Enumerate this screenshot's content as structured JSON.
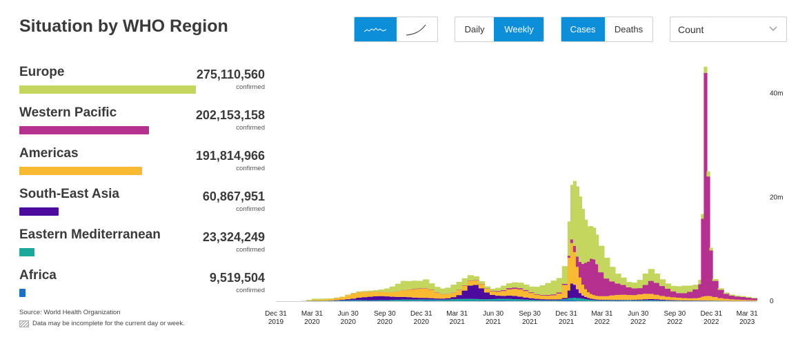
{
  "header": {
    "title": "Situation by WHO Region",
    "chart_style": {
      "options": [
        "linear-icon",
        "cumulative-icon"
      ],
      "selected": "linear-icon"
    },
    "period": {
      "options": [
        "Daily",
        "Weekly"
      ],
      "selected": "Weekly"
    },
    "metric": {
      "options": [
        "Cases",
        "Deaths"
      ],
      "selected": "Cases"
    },
    "measure_select": {
      "value": "Count",
      "icon": "chevron-down-icon"
    }
  },
  "regions": [
    {
      "name": "Europe",
      "value": "275,110,560",
      "sub": "confirmed",
      "color": "#c4d65e",
      "numeric": 275110560
    },
    {
      "name": "Western Pacific",
      "value": "202,153,158",
      "sub": "confirmed",
      "color": "#b5308f",
      "numeric": 202153158
    },
    {
      "name": "Americas",
      "value": "191,814,966",
      "sub": "confirmed",
      "color": "#f9b931",
      "numeric": 191814966
    },
    {
      "name": "South-East Asia",
      "value": "60,867,951",
      "sub": "confirmed",
      "color": "#4d0b9e",
      "numeric": 60867951
    },
    {
      "name": "Eastern Mediterranean",
      "value": "23,324,249",
      "sub": "confirmed",
      "color": "#1ba89a",
      "numeric": 23324249
    },
    {
      "name": "Africa",
      "value": "9,519,504",
      "sub": "confirmed",
      "color": "#1f6fc4",
      "numeric": 9519504
    }
  ],
  "footer": {
    "source": "Source: World Health Organization",
    "note": "Data may be incomplete for the current day or week."
  },
  "chart_data": {
    "type": "bar",
    "stacked": true,
    "x_ticks": [
      {
        "date": "2019-12-31",
        "line1": "Dec 31",
        "line2": "2019"
      },
      {
        "date": "2020-03-31",
        "line1": "Mar 31",
        "line2": "2020"
      },
      {
        "date": "2020-06-30",
        "line1": "Jun 30",
        "line2": "2020"
      },
      {
        "date": "2020-09-30",
        "line1": "Sep 30",
        "line2": "2020"
      },
      {
        "date": "2020-12-31",
        "line1": "Dec 31",
        "line2": "2020"
      },
      {
        "date": "2021-03-31",
        "line1": "Mar 31",
        "line2": "2021"
      },
      {
        "date": "2021-06-30",
        "line1": "Jun 30",
        "line2": "2021"
      },
      {
        "date": "2021-09-30",
        "line1": "Sep 30",
        "line2": "2021"
      },
      {
        "date": "2021-12-31",
        "line1": "Dec 31",
        "line2": "2021"
      },
      {
        "date": "2022-03-31",
        "line1": "Mar 31",
        "line2": "2022"
      },
      {
        "date": "2022-06-30",
        "line1": "Jun 30",
        "line2": "2022"
      },
      {
        "date": "2022-09-30",
        "line1": "Sep 30",
        "line2": "2022"
      },
      {
        "date": "2022-12-31",
        "line1": "Dec 31",
        "line2": "2022"
      },
      {
        "date": "2023-03-31",
        "line1": "Mar 31",
        "line2": "2023"
      }
    ],
    "y_ticks": [
      {
        "value": 0,
        "label": "0"
      },
      {
        "value": 20000000,
        "label": "20m"
      },
      {
        "value": 40000000,
        "label": "40m"
      }
    ],
    "ylim": [
      0,
      45000000
    ],
    "x_range": [
      "2019-12-31",
      "2023-04-24"
    ],
    "series_order": [
      "Africa",
      "Eastern Mediterranean",
      "South-East Asia",
      "Americas",
      "Western Pacific",
      "Europe"
    ],
    "series_colors": {
      "Africa": "#1f6fc4",
      "Eastern Mediterranean": "#1ba89a",
      "South-East Asia": "#4d0b9e",
      "Americas": "#f9b931",
      "Western Pacific": "#b5308f",
      "Europe": "#c4d65e"
    },
    "weeks": [
      [
        "2020-03-02",
        0.0,
        0.02,
        0.0,
        0.0,
        0.0,
        0.01
      ],
      [
        "2020-03-16",
        0.0,
        0.05,
        0.0,
        0.1,
        0.0,
        0.1
      ],
      [
        "2020-03-30",
        0.01,
        0.05,
        0.01,
        0.2,
        0.0,
        0.2
      ],
      [
        "2020-04-13",
        0.01,
        0.05,
        0.01,
        0.2,
        0.01,
        0.2
      ],
      [
        "2020-04-27",
        0.01,
        0.06,
        0.02,
        0.25,
        0.01,
        0.15
      ],
      [
        "2020-05-11",
        0.02,
        0.06,
        0.04,
        0.3,
        0.01,
        0.1
      ],
      [
        "2020-05-25",
        0.03,
        0.08,
        0.08,
        0.4,
        0.01,
        0.1
      ],
      [
        "2020-06-08",
        0.04,
        0.1,
        0.12,
        0.5,
        0.01,
        0.1
      ],
      [
        "2020-06-22",
        0.06,
        0.12,
        0.2,
        0.75,
        0.01,
        0.12
      ],
      [
        "2020-07-06",
        0.09,
        0.12,
        0.28,
        0.95,
        0.02,
        0.13
      ],
      [
        "2020-07-20",
        0.1,
        0.11,
        0.45,
        1.05,
        0.02,
        0.15
      ],
      [
        "2020-08-03",
        0.09,
        0.1,
        0.58,
        0.98,
        0.02,
        0.18
      ],
      [
        "2020-08-17",
        0.07,
        0.1,
        0.68,
        0.93,
        0.02,
        0.22
      ],
      [
        "2020-08-31",
        0.06,
        0.12,
        0.75,
        0.85,
        0.02,
        0.32
      ],
      [
        "2020-09-14",
        0.05,
        0.14,
        0.78,
        0.8,
        0.02,
        0.45
      ],
      [
        "2020-09-28",
        0.05,
        0.15,
        0.72,
        0.8,
        0.02,
        0.7
      ],
      [
        "2020-10-12",
        0.05,
        0.18,
        0.62,
        0.9,
        0.02,
        1.05
      ],
      [
        "2020-10-26",
        0.05,
        0.22,
        0.55,
        1.05,
        0.03,
        1.45
      ],
      [
        "2020-11-09",
        0.06,
        0.25,
        0.5,
        1.3,
        0.04,
        1.75
      ],
      [
        "2020-11-23",
        0.07,
        0.24,
        0.46,
        1.45,
        0.05,
        1.6
      ],
      [
        "2020-12-07",
        0.08,
        0.22,
        0.38,
        1.65,
        0.06,
        1.55
      ],
      [
        "2020-12-21",
        0.1,
        0.21,
        0.33,
        1.75,
        0.06,
        1.45
      ],
      [
        "2021-01-04",
        0.13,
        0.2,
        0.3,
        1.85,
        0.07,
        1.65
      ],
      [
        "2021-01-18",
        0.12,
        0.2,
        0.26,
        1.55,
        0.06,
        1.25
      ],
      [
        "2021-02-01",
        0.09,
        0.2,
        0.22,
        1.1,
        0.05,
        1.1
      ],
      [
        "2021-02-15",
        0.07,
        0.22,
        0.2,
        0.85,
        0.04,
        1.05
      ],
      [
        "2021-03-01",
        0.06,
        0.26,
        0.25,
        0.8,
        0.04,
        1.2
      ],
      [
        "2021-03-15",
        0.06,
        0.32,
        0.4,
        0.85,
        0.05,
        1.5
      ],
      [
        "2021-03-29",
        0.06,
        0.36,
        0.75,
        0.95,
        0.06,
        1.55
      ],
      [
        "2021-04-12",
        0.06,
        0.38,
        1.6,
        0.95,
        0.07,
        1.35
      ],
      [
        "2021-04-26",
        0.06,
        0.38,
        2.55,
        0.9,
        0.07,
        1.05
      ],
      [
        "2021-05-10",
        0.06,
        0.36,
        2.7,
        0.85,
        0.07,
        0.75
      ],
      [
        "2021-05-24",
        0.06,
        0.32,
        2.1,
        0.8,
        0.06,
        0.5
      ],
      [
        "2021-06-07",
        0.08,
        0.28,
        1.3,
        0.75,
        0.06,
        0.38
      ],
      [
        "2021-06-21",
        0.12,
        0.28,
        0.8,
        0.7,
        0.09,
        0.4
      ],
      [
        "2021-07-05",
        0.15,
        0.3,
        0.6,
        0.75,
        0.13,
        0.65
      ],
      [
        "2021-07-19",
        0.14,
        0.32,
        0.55,
        0.95,
        0.18,
        0.85
      ],
      [
        "2021-08-02",
        0.11,
        0.33,
        0.62,
        1.2,
        0.25,
        0.95
      ],
      [
        "2021-08-16",
        0.08,
        0.32,
        0.6,
        1.35,
        0.28,
        1.0
      ],
      [
        "2021-08-30",
        0.06,
        0.3,
        0.5,
        1.4,
        0.24,
        1.05
      ],
      [
        "2021-09-13",
        0.05,
        0.25,
        0.4,
        1.25,
        0.2,
        1.05
      ],
      [
        "2021-09-27",
        0.04,
        0.22,
        0.3,
        1.0,
        0.15,
        1.1
      ],
      [
        "2021-10-11",
        0.03,
        0.18,
        0.24,
        0.8,
        0.12,
        1.4
      ],
      [
        "2021-10-25",
        0.02,
        0.16,
        0.2,
        0.7,
        0.12,
        1.85
      ],
      [
        "2021-11-08",
        0.02,
        0.15,
        0.17,
        0.7,
        0.15,
        2.3
      ],
      [
        "2021-11-22",
        0.03,
        0.14,
        0.16,
        0.8,
        0.18,
        2.65
      ],
      [
        "2021-12-06",
        0.06,
        0.14,
        0.16,
        1.1,
        0.2,
        2.8
      ],
      [
        "2021-12-20",
        0.25,
        0.15,
        0.2,
        2.5,
        0.25,
        3.4
      ],
      [
        "2022-01-03",
        0.25,
        0.3,
        1.5,
        6.3,
        0.4,
        6.6
      ],
      [
        "2022-01-10",
        0.2,
        0.4,
        2.8,
        7.8,
        0.7,
        10.5
      ],
      [
        "2022-01-17",
        0.15,
        0.5,
        2.5,
        6.3,
        1.2,
        12.5
      ],
      [
        "2022-01-24",
        0.1,
        0.5,
        1.7,
        4.3,
        2.0,
        13.5
      ],
      [
        "2022-01-31",
        0.08,
        0.48,
        1.0,
        3.0,
        3.0,
        12.6
      ],
      [
        "2022-02-07",
        0.06,
        0.42,
        0.6,
        2.1,
        4.0,
        10.6
      ],
      [
        "2022-02-14",
        0.05,
        0.35,
        0.4,
        1.5,
        5.1,
        8.3
      ],
      [
        "2022-02-21",
        0.04,
        0.28,
        0.3,
        1.1,
        5.9,
        6.8
      ],
      [
        "2022-02-28",
        0.03,
        0.22,
        0.22,
        0.9,
        6.8,
        6.3
      ],
      [
        "2022-03-07",
        0.03,
        0.18,
        0.17,
        0.78,
        6.9,
        6.1
      ],
      [
        "2022-03-14",
        0.03,
        0.15,
        0.14,
        0.7,
        6.1,
        5.7
      ],
      [
        "2022-03-21",
        0.03,
        0.13,
        0.12,
        0.68,
        4.6,
        5.1
      ],
      [
        "2022-04-04",
        0.04,
        0.12,
        0.1,
        0.7,
        3.4,
        4.0
      ],
      [
        "2022-04-18",
        0.05,
        0.11,
        0.09,
        0.85,
        2.7,
        2.8
      ],
      [
        "2022-05-02",
        0.07,
        0.1,
        0.08,
        0.95,
        2.2,
        1.9
      ],
      [
        "2022-05-16",
        0.06,
        0.1,
        0.08,
        1.0,
        1.9,
        1.4
      ],
      [
        "2022-05-30",
        0.04,
        0.12,
        0.08,
        0.95,
        1.5,
        1.0
      ],
      [
        "2022-06-13",
        0.03,
        0.13,
        0.1,
        0.9,
        1.3,
        1.1
      ],
      [
        "2022-06-27",
        0.03,
        0.14,
        0.14,
        1.0,
        1.2,
        1.6
      ],
      [
        "2022-07-11",
        0.03,
        0.15,
        0.19,
        1.05,
        1.7,
        2.2
      ],
      [
        "2022-07-25",
        0.03,
        0.15,
        0.22,
        1.0,
        2.5,
        2.3
      ],
      [
        "2022-08-08",
        0.03,
        0.13,
        0.21,
        0.85,
        2.3,
        1.8
      ],
      [
        "2022-08-22",
        0.02,
        0.11,
        0.16,
        0.72,
        1.9,
        1.3
      ],
      [
        "2022-09-05",
        0.02,
        0.09,
        0.12,
        0.62,
        1.55,
        1.0
      ],
      [
        "2022-09-19",
        0.02,
        0.07,
        0.1,
        0.55,
        1.15,
        1.05
      ],
      [
        "2022-10-03",
        0.02,
        0.06,
        0.08,
        0.5,
        0.9,
        1.3
      ],
      [
        "2022-10-17",
        0.02,
        0.05,
        0.07,
        0.45,
        0.95,
        1.45
      ],
      [
        "2022-10-31",
        0.02,
        0.05,
        0.06,
        0.42,
        1.25,
        1.2
      ],
      [
        "2022-11-14",
        0.02,
        0.04,
        0.06,
        0.45,
        1.7,
        0.9
      ],
      [
        "2022-11-28",
        0.02,
        0.04,
        0.06,
        0.55,
        2.6,
        0.85
      ],
      [
        "2022-12-05",
        0.02,
        0.04,
        0.06,
        0.75,
        15.0,
        0.9
      ],
      [
        "2022-12-12",
        0.02,
        0.04,
        0.06,
        0.85,
        43.0,
        1.2
      ],
      [
        "2022-12-19",
        0.02,
        0.04,
        0.05,
        0.9,
        23.0,
        1.0
      ],
      [
        "2022-12-26",
        0.02,
        0.04,
        0.05,
        0.85,
        8.8,
        0.55
      ],
      [
        "2023-01-02",
        0.02,
        0.04,
        0.04,
        0.7,
        3.1,
        0.35
      ],
      [
        "2023-01-16",
        0.02,
        0.03,
        0.03,
        0.5,
        1.6,
        0.3
      ],
      [
        "2023-01-30",
        0.01,
        0.03,
        0.02,
        0.4,
        0.95,
        0.25
      ],
      [
        "2023-02-13",
        0.01,
        0.03,
        0.02,
        0.3,
        0.7,
        0.2
      ],
      [
        "2023-02-27",
        0.01,
        0.02,
        0.02,
        0.25,
        0.6,
        0.18
      ],
      [
        "2023-03-13",
        0.01,
        0.02,
        0.02,
        0.2,
        0.55,
        0.16
      ],
      [
        "2023-03-27",
        0.01,
        0.02,
        0.02,
        0.17,
        0.45,
        0.15
      ],
      [
        "2023-04-10",
        0.01,
        0.02,
        0.02,
        0.15,
        0.35,
        0.12
      ]
    ],
    "units_note": "weekly values in millions of cases; columns: week start, Africa, Eastern Mediterranean, South-East Asia, Americas, Western Pacific, Europe"
  }
}
